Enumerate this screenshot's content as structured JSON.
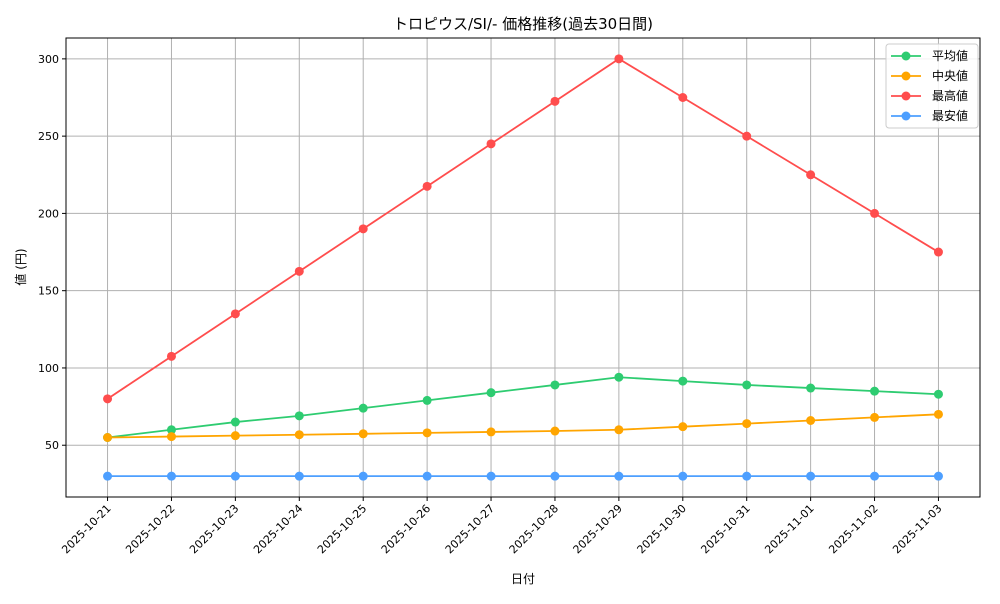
{
  "chart_data": {
    "type": "line",
    "title": "トロピウス/SI/- 価格推移(過去30日間)",
    "xlabel": "日付",
    "ylabel": "値 (円)",
    "categories": [
      "2025-10-21",
      "2025-10-22",
      "2025-10-23",
      "2025-10-24",
      "2025-10-25",
      "2025-10-26",
      "2025-10-27",
      "2025-10-28",
      "2025-10-29",
      "2025-10-30",
      "2025-10-31",
      "2025-11-01",
      "2025-11-02",
      "2025-11-03"
    ],
    "ylim": [
      16.5,
      313.5
    ],
    "yticks": [
      50,
      100,
      150,
      200,
      250,
      300
    ],
    "grid": true,
    "legend_position": "top-right",
    "series": [
      {
        "name": "平均値",
        "color": "#2ecc71",
        "values": [
          55,
          60,
          65,
          69,
          74,
          79,
          84,
          89,
          94,
          91.5,
          89,
          87,
          85,
          83
        ]
      },
      {
        "name": "中央値",
        "color": "#ffa500",
        "values": [
          55,
          55.6,
          56.2,
          56.8,
          57.4,
          58,
          58.6,
          59.2,
          60,
          62,
          64,
          66,
          68,
          70
        ]
      },
      {
        "name": "最高値",
        "color": "#ff4d4d",
        "values": [
          80,
          107.5,
          135,
          162.5,
          190,
          217.5,
          245,
          272.5,
          300,
          275,
          250,
          225,
          200,
          175
        ]
      },
      {
        "name": "最安値",
        "color": "#4d9fff",
        "values": [
          30,
          30,
          30,
          30,
          30,
          30,
          30,
          30,
          30,
          30,
          30,
          30,
          30,
          30
        ]
      }
    ]
  }
}
